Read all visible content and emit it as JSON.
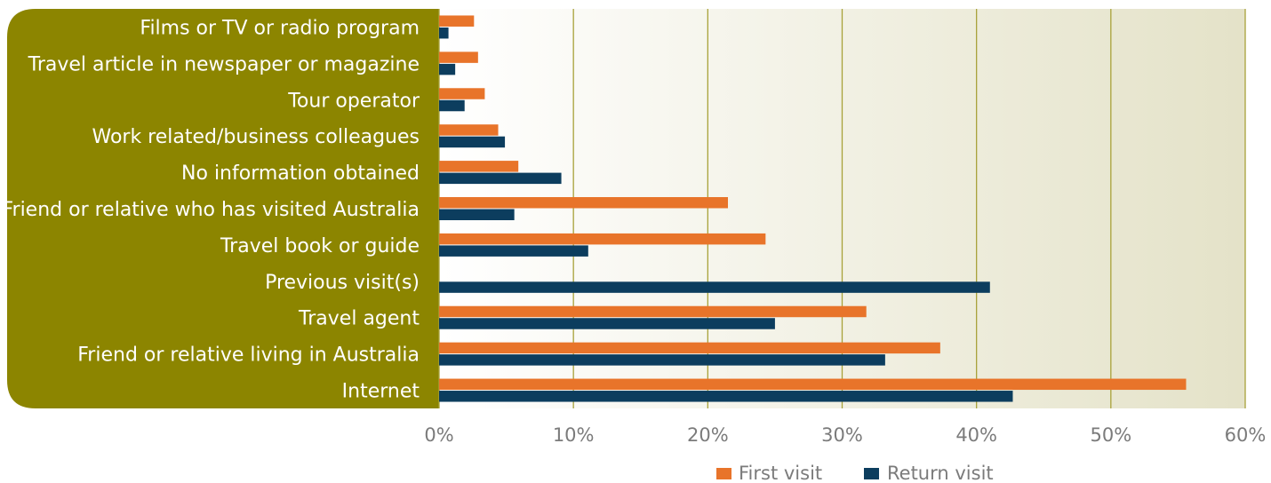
{
  "chart_data": {
    "type": "bar",
    "orientation": "horizontal",
    "categories": [
      "Films or TV or radio program",
      "Travel article in newspaper or magazine",
      "Tour operator",
      "Work related/business colleagues",
      "No information obtained",
      "Friend or relative who has visited Australia",
      "Travel book or guide",
      "Previous visit(s)",
      "Travel agent",
      "Friend or relative living in Australia",
      "Internet"
    ],
    "series": [
      {
        "name": "First visit",
        "color": "#e8742a",
        "values": [
          2.6,
          2.9,
          3.4,
          4.4,
          5.9,
          21.5,
          24.3,
          0,
          31.8,
          37.3,
          55.6
        ]
      },
      {
        "name": "Return visit",
        "color": "#0c3d5e",
        "values": [
          0.7,
          1.2,
          1.9,
          4.9,
          9.1,
          5.6,
          11.1,
          41.0,
          25.0,
          33.2,
          42.7
        ]
      }
    ],
    "xlim": [
      0,
      60
    ],
    "xticks": [
      "0%",
      "10%",
      "20%",
      "30%",
      "40%",
      "50%",
      "60%"
    ],
    "grid": true,
    "legend_position": "bottom",
    "label_panel_color": "#8c8500",
    "gridline_color": "#a8a23a"
  }
}
